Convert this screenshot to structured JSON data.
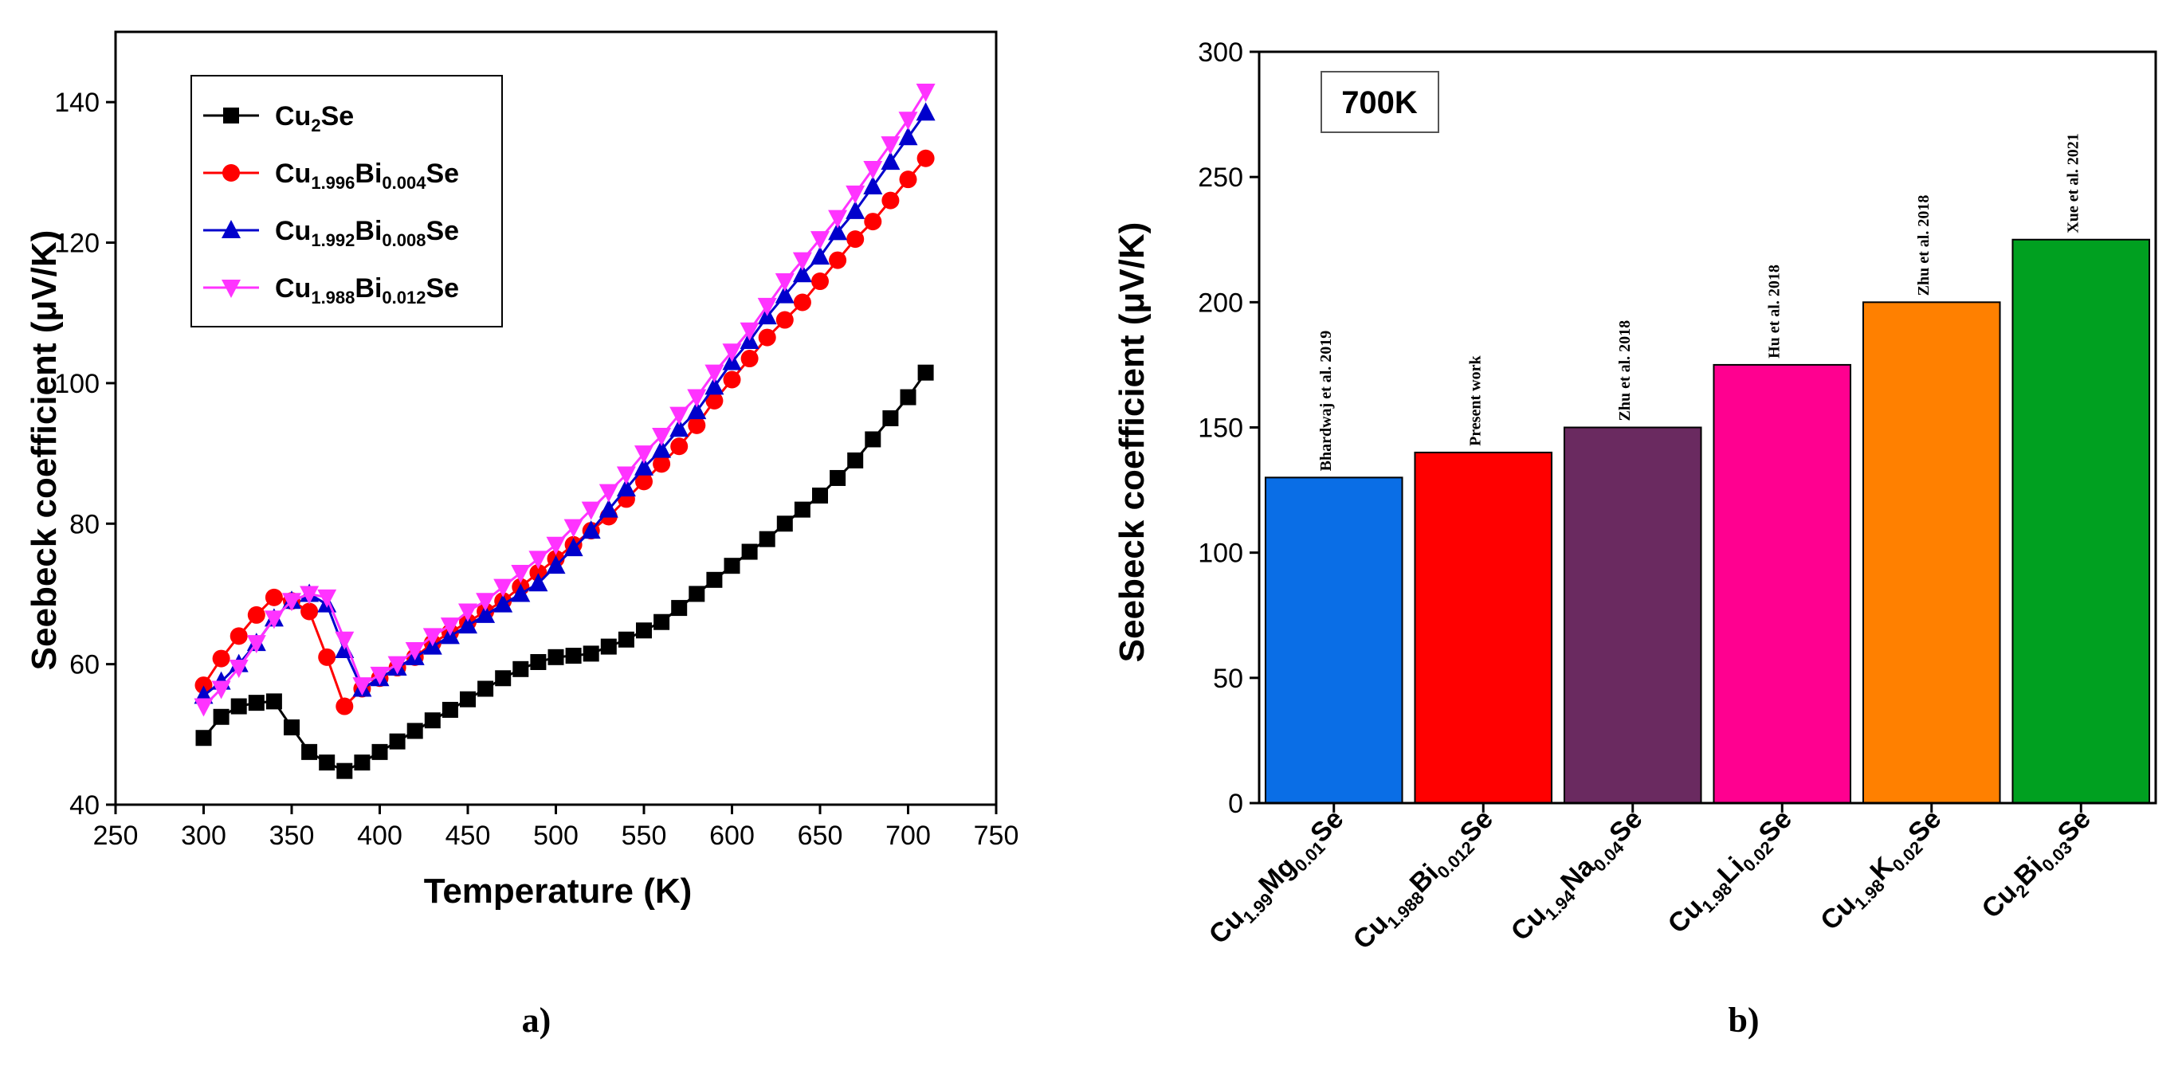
{
  "chart_data": [
    {
      "type": "line",
      "panel_label": "a)",
      "xlabel": "Temperature (K)",
      "ylabel": "Seebeck coefficient (μV/K)",
      "xlim": [
        250,
        750
      ],
      "ylim": [
        40,
        150
      ],
      "xticks": [
        250,
        300,
        350,
        400,
        450,
        500,
        550,
        600,
        650,
        700,
        750
      ],
      "yticks": [
        40,
        60,
        80,
        100,
        120,
        140
      ],
      "legend_position": "top-left",
      "x": [
        300,
        310,
        320,
        330,
        340,
        350,
        360,
        370,
        380,
        390,
        400,
        410,
        420,
        430,
        440,
        450,
        460,
        470,
        480,
        490,
        500,
        510,
        520,
        530,
        540,
        550,
        560,
        570,
        580,
        590,
        600,
        610,
        620,
        630,
        640,
        650,
        660,
        670,
        680,
        690,
        700,
        710
      ],
      "series": [
        {
          "name": "Cu2Se",
          "label_parts": [
            [
              "Cu",
              ""
            ],
            [
              "2",
              "sub"
            ],
            [
              "Se",
              ""
            ]
          ],
          "color": "#000000",
          "marker": "square",
          "values": [
            49.5,
            52.5,
            54.0,
            54.5,
            54.7,
            51.0,
            47.5,
            46.0,
            44.8,
            46.0,
            47.5,
            49.0,
            50.5,
            52.0,
            53.5,
            55.0,
            56.5,
            58.0,
            59.3,
            60.3,
            61.0,
            61.2,
            61.5,
            62.5,
            63.5,
            64.8,
            66.0,
            68.0,
            70.0,
            72.0,
            74.0,
            76.0,
            77.8,
            80.0,
            82.0,
            84.0,
            86.5,
            89.0,
            92.0,
            95.0,
            98.0,
            101.5
          ]
        },
        {
          "name": "Cu1.996Bi0.004Se",
          "label_parts": [
            [
              "Cu",
              ""
            ],
            [
              "1.996",
              "sub"
            ],
            [
              "Bi",
              ""
            ],
            [
              "0.004",
              "sub"
            ],
            [
              "Se",
              ""
            ]
          ],
          "color": "#ff0000",
          "marker": "circle",
          "values": [
            57.0,
            60.8,
            64.0,
            67.0,
            69.5,
            69.0,
            67.5,
            61.0,
            54.0,
            56.5,
            58.0,
            59.5,
            61.0,
            63.0,
            64.5,
            66.0,
            67.5,
            69.0,
            71.0,
            73.0,
            75.0,
            77.0,
            79.0,
            81.0,
            83.5,
            86.0,
            88.5,
            91.0,
            94.0,
            97.5,
            100.5,
            103.5,
            106.5,
            109.0,
            111.5,
            114.5,
            117.5,
            120.5,
            123.0,
            126.0,
            129.0,
            132.0
          ]
        },
        {
          "name": "Cu1.992Bi0.008Se",
          "label_parts": [
            [
              "Cu",
              ""
            ],
            [
              "1.992",
              "sub"
            ],
            [
              "Bi",
              ""
            ],
            [
              "0.008",
              "sub"
            ],
            [
              "Se",
              ""
            ]
          ],
          "color": "#0000cc",
          "marker": "triangle-up",
          "values": [
            55.5,
            57.5,
            60.0,
            63.0,
            66.5,
            69.0,
            70.0,
            68.5,
            62.0,
            56.5,
            58.0,
            59.5,
            61.0,
            62.5,
            64.0,
            65.5,
            67.0,
            68.5,
            70.0,
            71.5,
            74.0,
            76.5,
            79.0,
            82.0,
            85.0,
            88.0,
            90.5,
            93.5,
            96.0,
            99.5,
            103.0,
            106.0,
            109.5,
            112.5,
            115.5,
            118.0,
            121.5,
            124.5,
            128.0,
            131.5,
            135.0,
            138.5
          ]
        },
        {
          "name": "Cu1.988Bi0.012Se",
          "label_parts": [
            [
              "Cu",
              ""
            ],
            [
              "1.988",
              "sub"
            ],
            [
              "Bi",
              ""
            ],
            [
              "0.012",
              "sub"
            ],
            [
              "Se",
              ""
            ]
          ],
          "color": "#ff33ff",
          "marker": "triangle-down",
          "values": [
            54.0,
            56.5,
            59.5,
            63.0,
            66.5,
            69.0,
            70.0,
            69.5,
            63.5,
            57.0,
            58.5,
            60.0,
            62.0,
            64.0,
            65.5,
            67.5,
            69.0,
            71.0,
            73.0,
            75.0,
            77.0,
            79.5,
            82.0,
            84.5,
            87.0,
            90.0,
            92.5,
            95.5,
            98.0,
            101.5,
            104.5,
            107.5,
            111.0,
            114.5,
            117.5,
            120.5,
            123.5,
            127.0,
            130.5,
            134.0,
            137.5,
            141.5
          ]
        }
      ]
    },
    {
      "type": "bar",
      "panel_label": "b)",
      "title": "700K",
      "ylabel": "Seebeck coefficient (μV/K)",
      "ylim": [
        0,
        300
      ],
      "yticks": [
        0,
        50,
        100,
        150,
        200,
        250,
        300
      ],
      "categories": [
        "Cu1.99Mg0.01Se",
        "Cu1.988Bi0.012Se",
        "Cu1.94Na0.04Se",
        "Cu1.98Li0.02Se",
        "Cu1.98K0.02Se",
        "Cu2Bi0.03Se"
      ],
      "category_parts": [
        [
          [
            "Cu",
            ""
          ],
          [
            "1.99",
            "sub"
          ],
          [
            "Mg",
            ""
          ],
          [
            "0.01",
            "sub"
          ],
          [
            "Se",
            ""
          ]
        ],
        [
          [
            "Cu",
            ""
          ],
          [
            "1.988",
            "sub"
          ],
          [
            "Bi",
            ""
          ],
          [
            "0.012",
            "sub"
          ],
          [
            "Se",
            ""
          ]
        ],
        [
          [
            "Cu",
            ""
          ],
          [
            "1.94",
            "sub"
          ],
          [
            "Na",
            ""
          ],
          [
            "0.04",
            "sub"
          ],
          [
            "Se",
            ""
          ]
        ],
        [
          [
            "Cu",
            ""
          ],
          [
            "1.98",
            "sub"
          ],
          [
            "Li",
            ""
          ],
          [
            "0.02",
            "sub"
          ],
          [
            "Se",
            ""
          ]
        ],
        [
          [
            "Cu",
            ""
          ],
          [
            "1.98",
            "sub"
          ],
          [
            "K",
            ""
          ],
          [
            "0.02",
            "sub"
          ],
          [
            "Se",
            ""
          ]
        ],
        [
          [
            "Cu",
            ""
          ],
          [
            "2",
            "sub"
          ],
          [
            "Bi",
            ""
          ],
          [
            "0.03",
            "sub"
          ],
          [
            "Se",
            ""
          ]
        ]
      ],
      "values": [
        130,
        140,
        150,
        175,
        200,
        225
      ],
      "annotations": [
        "Bhardwaj et al. 2019",
        "Present work",
        "Zhu et al. 2018",
        "Hu et al. 2018",
        "Zhu et al. 2018",
        "Xue et al. 2021"
      ],
      "colors": [
        "#0a6ee6",
        "#ff0000",
        "#6a2a60",
        "#ff0090",
        "#ff8000",
        "#00a020"
      ]
    }
  ]
}
